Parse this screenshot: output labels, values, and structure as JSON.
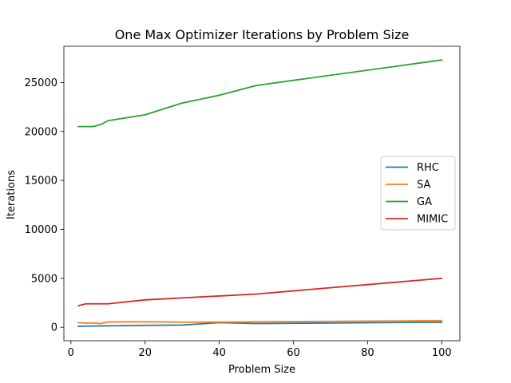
{
  "chart_data": {
    "type": "line",
    "title": "One Max Optimizer Iterations by Problem Size",
    "xlabel": "Problem Size",
    "ylabel": "Iterations",
    "xlim": [
      -1.9,
      104.9
    ],
    "ylim": [
      -1370,
      28700
    ],
    "xticks": [
      0,
      20,
      40,
      60,
      80,
      100
    ],
    "yticks": [
      0,
      5000,
      10000,
      15000,
      20000,
      25000
    ],
    "grid": false,
    "legend_position": "center-right",
    "x": [
      2,
      4,
      6,
      8,
      10,
      20,
      30,
      40,
      50,
      100
    ],
    "series": [
      {
        "name": "RHC",
        "color": "#1f77b4",
        "values": [
          100,
          120,
          130,
          140,
          150,
          200,
          230,
          480,
          380,
          520
        ]
      },
      {
        "name": "SA",
        "color": "#ff7f0e",
        "values": [
          480,
          420,
          450,
          380,
          550,
          560,
          530,
          530,
          560,
          680
        ]
      },
      {
        "name": "GA",
        "color": "#2ca02c",
        "values": [
          20500,
          20500,
          20500,
          20700,
          21100,
          21700,
          22900,
          23700,
          24700,
          27300
        ]
      },
      {
        "name": "MIMIC",
        "color": "#d62728",
        "values": [
          2200,
          2400,
          2400,
          2400,
          2400,
          2800,
          3000,
          3200,
          3400,
          5000
        ]
      }
    ]
  }
}
